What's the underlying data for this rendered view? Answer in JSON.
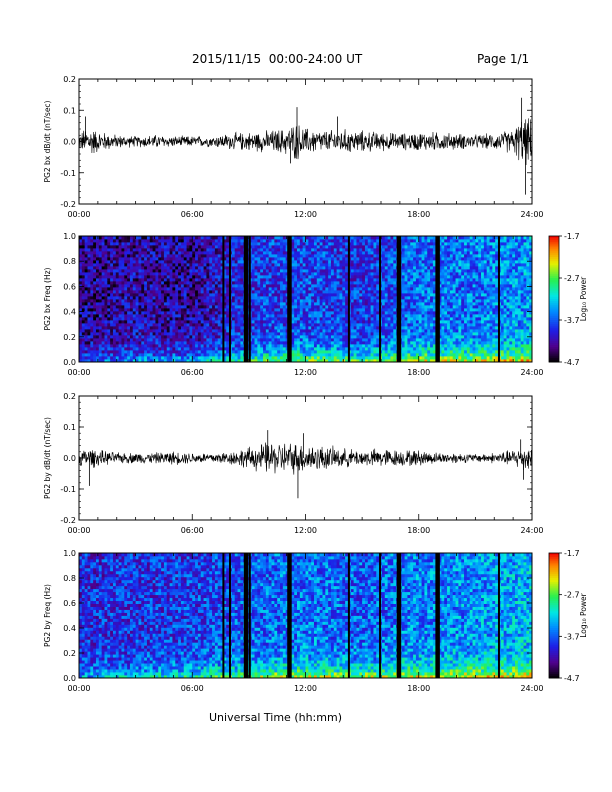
{
  "header": {
    "title": "2015/11/15  00:00-24:00 UT",
    "page_label": "Page 1/1"
  },
  "footer": {
    "xlabel": "Universal Time (hh:mm)"
  },
  "time_ticks": [
    "00:00",
    "06:00",
    "12:00",
    "18:00",
    "24:00"
  ],
  "colorbar": {
    "tick_labels": [
      "-1.7",
      "-2.7",
      "-3.7",
      "-4.7"
    ],
    "tick_values": [
      -1.7,
      -2.7,
      -3.7,
      -4.7
    ],
    "range": [
      -4.7,
      -1.7
    ],
    "label": "Log₁₀ Power"
  },
  "chart_data": [
    {
      "type": "line",
      "id": "bx_ts",
      "ylabel": "PG2 bx dB/dt (nT/sec)",
      "xlim": [
        0,
        24
      ],
      "ylim": [
        -0.2,
        0.2
      ],
      "yticks": [
        "0.2",
        "0.1",
        "0.0",
        "-0.1",
        "-0.2"
      ],
      "ytick_values": [
        0.2,
        0.1,
        0.0,
        -0.1,
        -0.2
      ],
      "amplitude_envelope": {
        "x": [
          0,
          0.5,
          1,
          2,
          3,
          4,
          5,
          6,
          7,
          8,
          9,
          10,
          11,
          11.5,
          12,
          13,
          14,
          15,
          16,
          17,
          18,
          19,
          20,
          21,
          22,
          23,
          23.5,
          24
        ],
        "y": [
          0.03,
          0.06,
          0.04,
          0.025,
          0.02,
          0.025,
          0.02,
          0.02,
          0.02,
          0.03,
          0.035,
          0.04,
          0.05,
          0.07,
          0.05,
          0.04,
          0.045,
          0.04,
          0.035,
          0.03,
          0.035,
          0.035,
          0.03,
          0.025,
          0.03,
          0.045,
          0.09,
          0.08
        ]
      },
      "spikes": [
        {
          "x": 0.35,
          "y": 0.08
        },
        {
          "x": 11.55,
          "y": 0.11
        },
        {
          "x": 11.2,
          "y": -0.07
        },
        {
          "x": 23.45,
          "y": 0.14
        },
        {
          "x": 23.65,
          "y": -0.17
        },
        {
          "x": 13.7,
          "y": 0.08
        }
      ]
    },
    {
      "type": "heatmap",
      "id": "bx_spec",
      "ylabel": "PG2 bx Freq (Hz)",
      "xlim": [
        0,
        24
      ],
      "ylim": [
        0,
        1.0
      ],
      "yticks": [
        "1.0",
        "0.8",
        "0.6",
        "0.4",
        "0.2",
        "0.0"
      ],
      "ytick_values": [
        1.0,
        0.8,
        0.6,
        0.4,
        0.2,
        0.0
      ],
      "gaps_hours": [
        7.65,
        8.0,
        8.85,
        9.05,
        11.15,
        14.3,
        15.95,
        16.95,
        19.0,
        22.25
      ],
      "wide_gaps_hours": [
        8.85,
        11.15,
        16.95,
        19.0
      ],
      "bg_log_power": [
        {
          "x": 0,
          "v": -4.3
        },
        {
          "x": 3,
          "v": -4.2
        },
        {
          "x": 6,
          "v": -4.25
        },
        {
          "x": 9,
          "v": -3.9
        },
        {
          "x": 12,
          "v": -3.8
        },
        {
          "x": 15,
          "v": -3.9
        },
        {
          "x": 18,
          "v": -3.65
        },
        {
          "x": 21,
          "v": -3.6
        },
        {
          "x": 24,
          "v": -3.45
        }
      ],
      "low_freq_boost": 1.2
    },
    {
      "type": "line",
      "id": "by_ts",
      "ylabel": "PG2 by dB/dt (nT/sec)",
      "xlim": [
        0,
        24
      ],
      "ylim": [
        -0.2,
        0.2
      ],
      "yticks": [
        "0.2",
        "0.1",
        "0.0",
        "-0.1",
        "-0.2"
      ],
      "ytick_values": [
        0.2,
        0.1,
        0.0,
        -0.1,
        -0.2
      ],
      "amplitude_envelope": {
        "x": [
          0,
          0.5,
          1,
          2,
          3,
          4,
          5,
          6,
          7,
          8,
          9,
          10,
          11,
          12,
          13,
          14,
          15,
          16,
          17,
          18,
          19,
          20,
          21,
          22,
          23,
          23.5,
          24
        ],
        "y": [
          0.025,
          0.04,
          0.03,
          0.02,
          0.02,
          0.02,
          0.025,
          0.02,
          0.02,
          0.025,
          0.04,
          0.06,
          0.06,
          0.055,
          0.045,
          0.035,
          0.03,
          0.035,
          0.03,
          0.03,
          0.02,
          0.02,
          0.015,
          0.02,
          0.03,
          0.05,
          0.04
        ]
      },
      "spikes": [
        {
          "x": 0.55,
          "y": -0.09
        },
        {
          "x": 10.0,
          "y": 0.09
        },
        {
          "x": 11.6,
          "y": -0.13
        },
        {
          "x": 11.9,
          "y": 0.08
        },
        {
          "x": 23.4,
          "y": 0.06
        },
        {
          "x": 23.55,
          "y": -0.07
        }
      ]
    },
    {
      "type": "heatmap",
      "id": "by_spec",
      "ylabel": "PG2 by Freq (Hz)",
      "xlim": [
        0,
        24
      ],
      "ylim": [
        0,
        1.0
      ],
      "yticks": [
        "1.0",
        "0.8",
        "0.6",
        "0.4",
        "0.2",
        "0.0"
      ],
      "ytick_values": [
        1.0,
        0.8,
        0.6,
        0.4,
        0.2,
        0.0
      ],
      "gaps_hours": [
        7.65,
        8.0,
        8.85,
        9.05,
        11.15,
        14.3,
        15.95,
        16.95,
        19.0,
        22.25
      ],
      "wide_gaps_hours": [
        8.85,
        11.15,
        16.95,
        19.0
      ],
      "bg_log_power": [
        {
          "x": 0,
          "v": -3.95
        },
        {
          "x": 3,
          "v": -3.9
        },
        {
          "x": 6,
          "v": -3.85
        },
        {
          "x": 9,
          "v": -3.7
        },
        {
          "x": 12,
          "v": -3.6
        },
        {
          "x": 15,
          "v": -3.7
        },
        {
          "x": 18,
          "v": -3.55
        },
        {
          "x": 21,
          "v": -3.5
        },
        {
          "x": 24,
          "v": -3.35
        }
      ],
      "low_freq_boost": 1.15
    }
  ]
}
